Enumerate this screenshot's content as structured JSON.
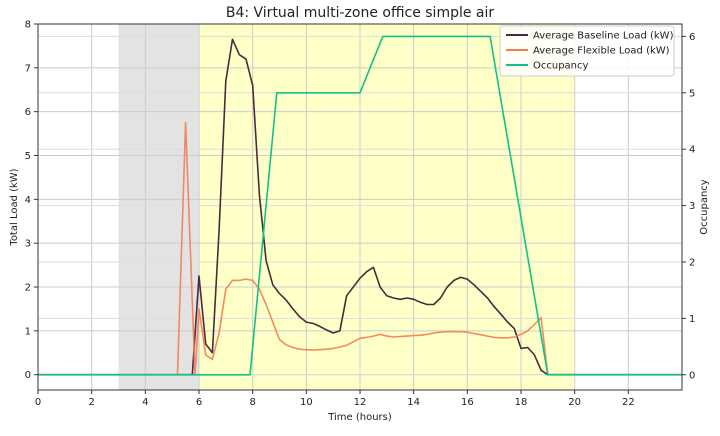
{
  "colors": {
    "baseline": "#4a2a3d",
    "flexible": "#f47c55",
    "occupancy": "#14c08a",
    "shade_gray": "#e3e3e3",
    "shade_yellow": "#ffffc8",
    "grid": "#cccccc"
  },
  "chart_data": {
    "type": "line",
    "title": "B4: Virtual multi-zone office simple air",
    "xlabel": "Time (hours)",
    "ylabel": "Total Load (kW)",
    "y2label": "Occupancy",
    "xlim": [
      0,
      24
    ],
    "ylim": [
      -0.35,
      8.0
    ],
    "y2lim": [
      -0.27,
      6.22
    ],
    "xticks": [
      0,
      2,
      4,
      6,
      8,
      10,
      12,
      14,
      16,
      18,
      20,
      22
    ],
    "yticks": [
      0,
      1,
      2,
      3,
      4,
      5,
      6,
      7,
      8
    ],
    "y2ticks": [
      0,
      1,
      2,
      3,
      4,
      5,
      6
    ],
    "grid": true,
    "legend_position": "top-right",
    "shaded_regions": [
      {
        "x0": 3,
        "x1": 6,
        "color": "gray"
      },
      {
        "x0": 6,
        "x1": 20,
        "color": "yellow"
      }
    ],
    "series": [
      {
        "name": "Average Baseline Load (kW)",
        "axis": "left",
        "x": [
          0,
          5,
          5.75,
          6.0,
          6.25,
          6.5,
          6.75,
          7.0,
          7.25,
          7.5,
          7.75,
          8.0,
          8.25,
          8.5,
          8.75,
          9.0,
          9.25,
          9.5,
          9.75,
          10.0,
          10.25,
          10.5,
          10.75,
          11.0,
          11.25,
          11.5,
          11.75,
          12.0,
          12.25,
          12.5,
          12.75,
          13.0,
          13.25,
          13.5,
          13.75,
          14.0,
          14.25,
          14.5,
          14.75,
          15.0,
          15.25,
          15.5,
          15.75,
          16.0,
          16.25,
          16.5,
          16.75,
          17.0,
          17.25,
          17.5,
          17.75,
          18.0,
          18.25,
          18.5,
          18.75,
          19.0,
          19.25,
          24
        ],
        "values": [
          0,
          0,
          0,
          2.25,
          0.7,
          0.5,
          3.3,
          6.7,
          7.65,
          7.3,
          7.2,
          6.6,
          4.1,
          2.6,
          2.05,
          1.85,
          1.7,
          1.5,
          1.32,
          1.2,
          1.17,
          1.1,
          1.02,
          0.95,
          1.0,
          1.8,
          2.0,
          2.2,
          2.35,
          2.45,
          2.0,
          1.8,
          1.75,
          1.72,
          1.75,
          1.72,
          1.65,
          1.6,
          1.6,
          1.75,
          2.0,
          2.15,
          2.22,
          2.18,
          2.05,
          1.9,
          1.75,
          1.55,
          1.38,
          1.2,
          1.05,
          0.6,
          0.62,
          0.45,
          0.1,
          0,
          0,
          0
        ]
      },
      {
        "name": "Average Flexible Load (kW)",
        "axis": "left",
        "x": [
          0,
          5.2,
          5.5,
          5.85,
          6.0,
          6.25,
          6.5,
          6.75,
          7.0,
          7.25,
          7.5,
          7.75,
          8.0,
          8.25,
          8.5,
          8.75,
          9.0,
          9.25,
          9.5,
          9.75,
          10.0,
          10.25,
          10.5,
          10.75,
          11.0,
          11.25,
          11.5,
          11.75,
          12.0,
          12.25,
          12.5,
          12.75,
          13.0,
          13.25,
          13.5,
          13.75,
          14.0,
          14.25,
          14.5,
          14.75,
          15.0,
          15.25,
          15.5,
          15.75,
          16.0,
          16.25,
          16.5,
          16.75,
          17.0,
          17.25,
          17.5,
          17.75,
          18.0,
          18.25,
          18.5,
          18.75,
          19.0,
          24
        ],
        "values": [
          0,
          0,
          5.75,
          0,
          1.5,
          0.45,
          0.35,
          0.95,
          1.95,
          2.15,
          2.15,
          2.18,
          2.15,
          1.95,
          1.6,
          1.2,
          0.8,
          0.68,
          0.62,
          0.58,
          0.57,
          0.56,
          0.57,
          0.58,
          0.6,
          0.63,
          0.67,
          0.75,
          0.83,
          0.85,
          0.88,
          0.92,
          0.88,
          0.86,
          0.87,
          0.88,
          0.89,
          0.9,
          0.92,
          0.95,
          0.97,
          0.98,
          0.98,
          0.98,
          0.97,
          0.94,
          0.91,
          0.88,
          0.85,
          0.84,
          0.84,
          0.86,
          0.92,
          1.0,
          1.15,
          1.3,
          0,
          0
        ]
      },
      {
        "name": "Occupancy",
        "axis": "right",
        "x": [
          0,
          7.9,
          8.9,
          12.0,
          12.85,
          16.85,
          19.0,
          24
        ],
        "values": [
          0,
          0,
          5,
          5,
          6,
          6,
          0,
          0
        ]
      }
    ]
  }
}
